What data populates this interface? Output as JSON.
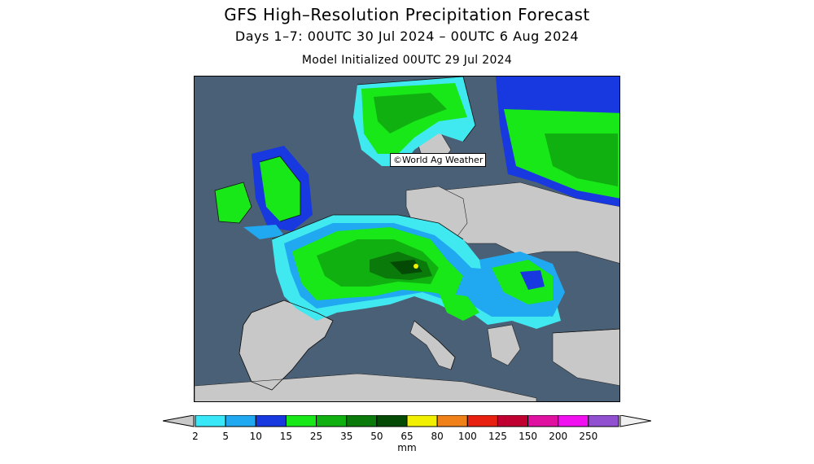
{
  "header": {
    "title": "GFS High–Resolution Precipitation Forecast",
    "subtitle": "Days 1–7: 00UTC 30 Jul 2024 – 00UTC 6 Aug 2024",
    "init": "Model Initialized 00UTC 29 Jul 2024"
  },
  "map": {
    "credit": "©World Ag Weather",
    "colors": {
      "sea": "#4a6076",
      "dry_land": "#c8c8c8",
      "p2": "#40e8f0",
      "p5": "#20a8f0",
      "p10": "#1838e0",
      "p15": "#18e818",
      "p25": "#10b010",
      "p35": "#0a7a0a",
      "p50": "#044a04",
      "p65": "#f0f000"
    }
  },
  "legend": {
    "unit": "mm",
    "ticks": [
      "2",
      "5",
      "10",
      "15",
      "25",
      "35",
      "50",
      "65",
      "80",
      "100",
      "125",
      "150",
      "200",
      "250"
    ],
    "colors": [
      "#38e8f8",
      "#20a8f0",
      "#1838e0",
      "#18e818",
      "#10b010",
      "#0a7a0a",
      "#044a04",
      "#f0f000",
      "#f08018",
      "#e82010",
      "#c00030",
      "#e010a0",
      "#f010f0",
      "#9050d0"
    ]
  }
}
